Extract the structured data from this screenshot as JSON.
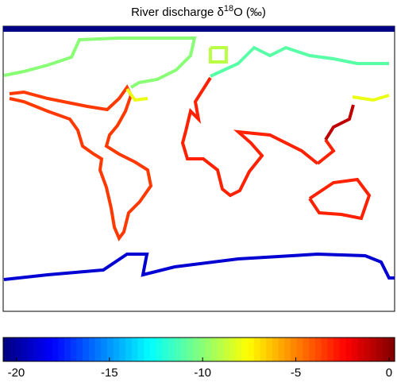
{
  "title": {
    "prefix": "River discharge δ",
    "sup": "18",
    "suffix": "O (‰)"
  },
  "colorbar": {
    "clim": [
      -20.7,
      0.3
    ],
    "ticks": [
      -20,
      -15,
      -10,
      -5,
      0
    ]
  },
  "segments": [
    {
      "value": -20.6
    },
    {
      "value": -10
    },
    {
      "value": -3.5
    },
    {
      "value": -8
    },
    {
      "value": -3
    },
    {
      "value": -11
    },
    {
      "value": -8
    },
    {
      "value": -3
    },
    {
      "value": -1
    },
    {
      "value": -3
    },
    {
      "value": -19
    },
    {
      "value": -9
    }
  ]
}
